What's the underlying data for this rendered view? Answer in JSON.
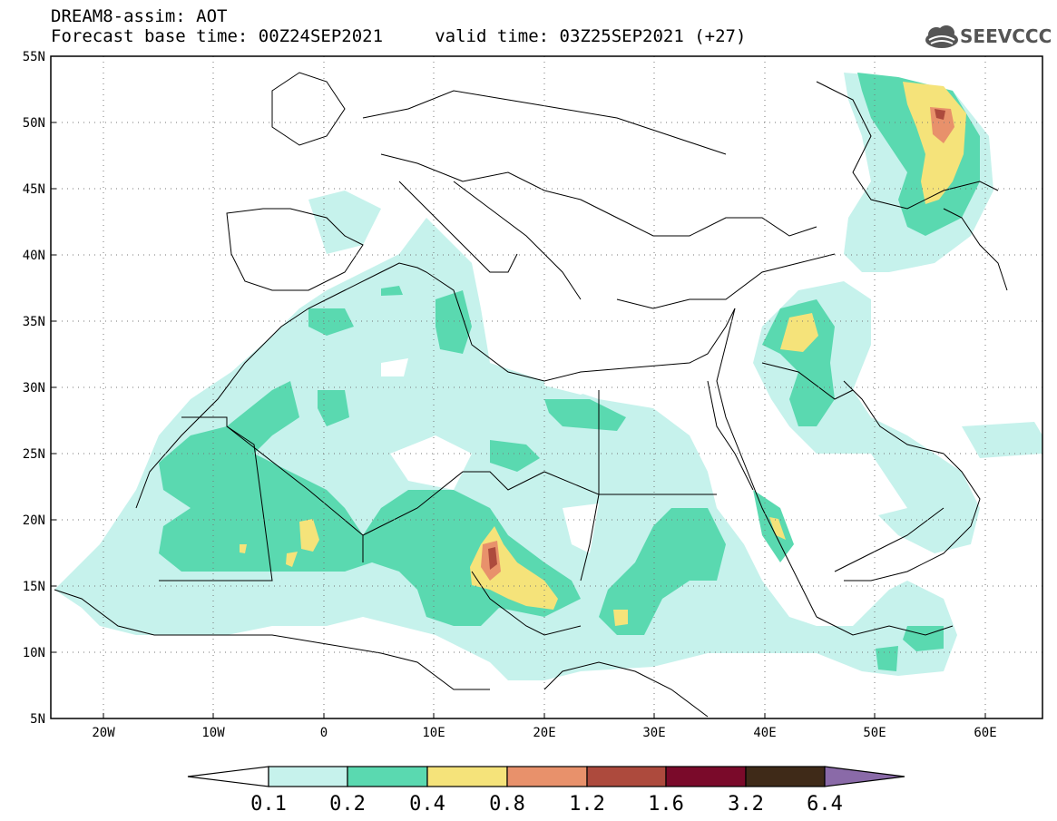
{
  "header": {
    "title_line": "DREAM8-assim: AOT",
    "time_line": "Forecast base time: 00Z24SEP2021     valid time: 03Z25SEP2021 (+27)"
  },
  "logo": {
    "text": "SEEVCCC",
    "icon": "cloud-icon"
  },
  "map": {
    "lat_labels": [
      "55N",
      "50N",
      "45N",
      "40N",
      "35N",
      "30N",
      "25N",
      "20N",
      "15N",
      "10N",
      "5N"
    ],
    "lon_labels": [
      "20W",
      "10W",
      "0",
      "10E",
      "20E",
      "30E",
      "40E",
      "50E",
      "60E"
    ],
    "lat_range": [
      5,
      55
    ],
    "lon_range": [
      -25,
      65
    ],
    "grid": "dotted"
  },
  "colorbar": {
    "labels": [
      "0.1",
      "0.2",
      "0.4",
      "0.8",
      "1.2",
      "1.6",
      "3.2",
      "6.4"
    ],
    "colors": [
      "#c6f2ec",
      "#5ad9b0",
      "#f5e37a",
      "#e8916b",
      "#ad4a3d",
      "#7a0a2a",
      "#3f2a18",
      "#8a6aa8"
    ]
  },
  "colors": {
    "low": "#c6f2ec",
    "mid": "#5ad9b0",
    "high": "#f5e37a",
    "higher": "#e8916b",
    "peak": "#ad4a3d"
  }
}
